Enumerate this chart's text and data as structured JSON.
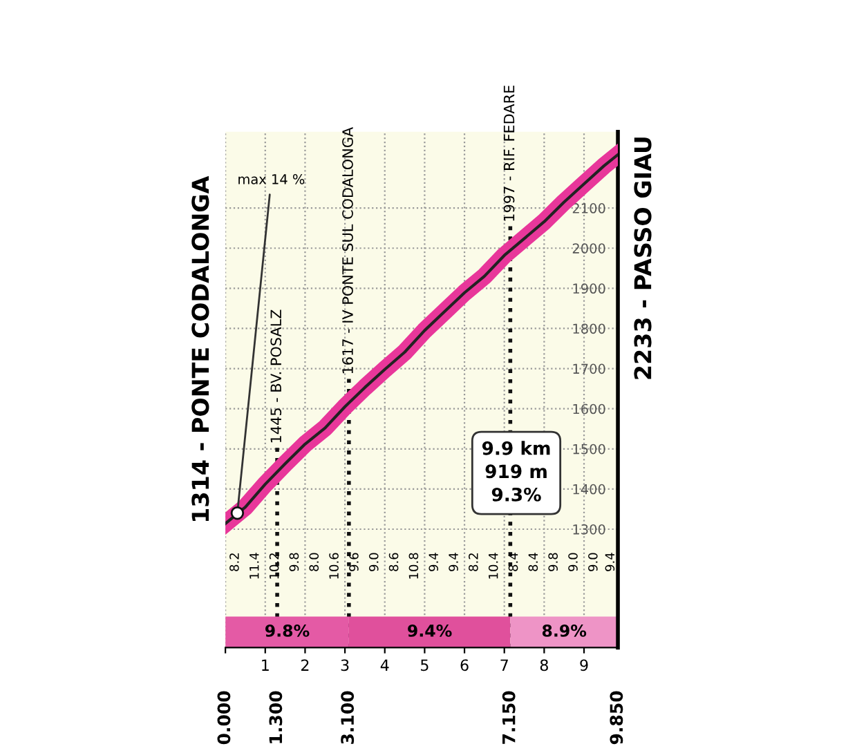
{
  "chart_data": {
    "type": "area",
    "x": [
      0,
      0.5,
      1,
      1.5,
      2,
      2.5,
      3,
      3.5,
      4,
      4.5,
      5,
      5.5,
      6,
      6.5,
      7,
      7.5,
      8,
      8.5,
      9,
      9.5,
      9.85
    ],
    "series": [
      {
        "color": "#e8379a",
        "values": [
          1314,
          1355,
          1412,
          1463,
          1512,
          1552,
          1605,
          1653,
          1698,
          1741,
          1795,
          1842,
          1889,
          1930,
          1982,
          2024,
          2066,
          2115,
          2160,
          2205,
          2233
        ]
      }
    ],
    "xlim": [
      0,
      9.85
    ],
    "ylim": [
      1005,
      2290
    ],
    "xticks": [
      {
        "value": 0,
        "label": null
      },
      1,
      2,
      3,
      4,
      5,
      6,
      7,
      8,
      9
    ],
    "x2lim": [
      0,
      9.85
    ],
    "x2ticks": [
      {
        "value": 0,
        "label": "0.000"
      },
      {
        "value": 1.3,
        "label": "1.300"
      },
      {
        "value": 3.1,
        "label": "3.100"
      },
      {
        "value": 7.15,
        "label": "7.150"
      },
      {
        "value": 9.85,
        "label": "9.850"
      }
    ],
    "yticks": [
      1300,
      1400,
      1500,
      1600,
      1700,
      1800,
      1900,
      2000,
      2100
    ],
    "grid": true,
    "ref_lines": [
      {
        "axis": "x",
        "value": 1.3,
        "label": "1445 - BV. POSALZ",
        "line_style": "dotted"
      },
      {
        "axis": "x",
        "value": 3.1,
        "label": "1617 - IV PONTE SUL CODALONGA",
        "line_style": "dotted"
      },
      {
        "axis": "x",
        "value": 7.15,
        "label": "1997 - RIF. FEDARE",
        "line_style": "dotted"
      }
    ],
    "bands": [
      {
        "axis": "x",
        "from": 0,
        "to": 3.1,
        "label": "9.8%",
        "color": "#e45aa5"
      },
      {
        "axis": "x",
        "from": 3.1,
        "to": 7.15,
        "label": "9.4%",
        "color": "#e0509c"
      },
      {
        "axis": "x",
        "from": 7.15,
        "to": 9.85,
        "label": "8.9%",
        "color": "#ee94c6"
      }
    ],
    "annotations": [
      {
        "text": "1314 - PONTE CODALONGA",
        "x": 0,
        "y": 1314
      },
      {
        "text": "2233 - PASSO GIAU",
        "x": 9.85,
        "y": 2233
      },
      {
        "text": "max 14 %",
        "x": 0.3,
        "y": 1340
      },
      "9.9 km\n919 m\n9.3%",
      "8.2",
      "11.4",
      "10.2",
      "9.8",
      "8.0",
      "10.6",
      "9.6",
      "9.0",
      "8.6",
      "10.8",
      "9.4",
      "9.4",
      "8.2",
      "10.4",
      "8.4",
      "8.4",
      "9.8",
      "9.0",
      "9.0",
      "9.4"
    ]
  }
}
